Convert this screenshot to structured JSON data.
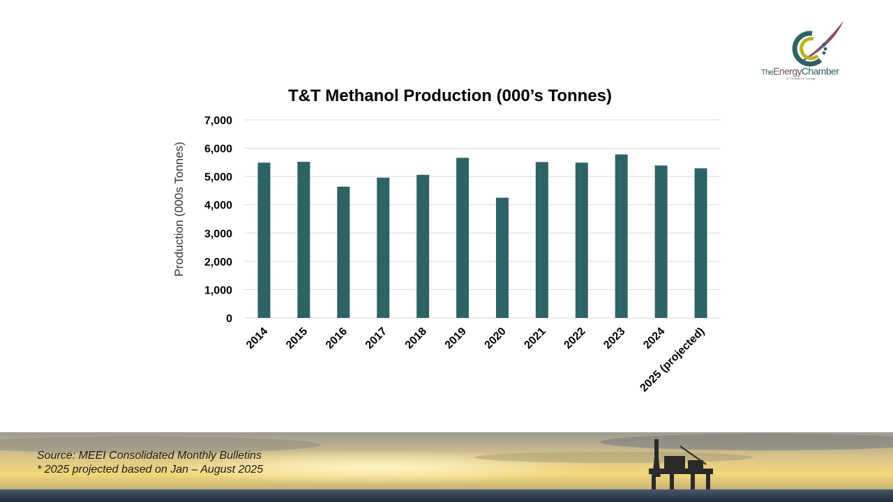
{
  "logo": {
    "word1": "The",
    "word2": "Energy",
    "word3": "Chamber",
    "tagline": "of Trinidad & Tobago"
  },
  "footer": {
    "source": "Source: MEEI Consolidated Monthly Bulletins",
    "note": "* 2025 projected based on Jan – August 2025"
  },
  "colors": {
    "bar": "#2e6366",
    "grid": "#d9d9d9",
    "text": "#000000"
  },
  "chart_data": {
    "type": "bar",
    "title": "T&T Methanol Production (000’s Tonnes)",
    "xlabel": "",
    "ylabel": "Production (000s Tonnes)",
    "ylim": [
      0,
      7000
    ],
    "yticks": [
      "0",
      "1,000",
      "2,000",
      "3,000",
      "4,000",
      "5,000",
      "6,000",
      "7,000"
    ],
    "grid": true,
    "legend": "none",
    "categories": [
      "2014",
      "2015",
      "2016",
      "2017",
      "2018",
      "2019",
      "2020",
      "2021",
      "2022",
      "2023",
      "2024",
      "2025 (projected)"
    ],
    "values": [
      5490,
      5520,
      4640,
      4960,
      5060,
      5660,
      4250,
      5510,
      5490,
      5780,
      5390,
      5290
    ]
  }
}
